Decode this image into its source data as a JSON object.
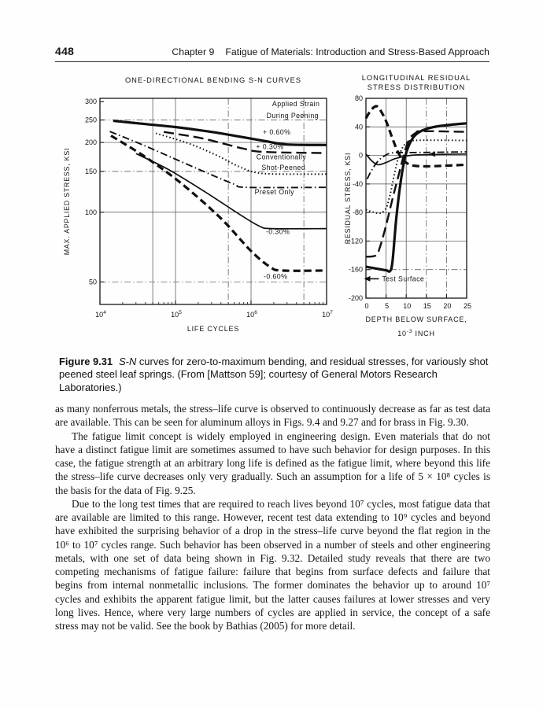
{
  "header": {
    "page_number": "448",
    "chapter_label": "Chapter 9",
    "chapter_title": "Fatigue of Materials: Introduction and Stress-Based Approach"
  },
  "figure_caption": {
    "label": "Figure 9.31",
    "italic_lead": "S-N",
    "text": "curves for zero-to-maximum bending, and residual stresses, for variously shot peened steel leaf springs. (From [Mattson 59]; courtesy of General Motors Research Laboratories.)"
  },
  "paragraphs": [
    "as many nonferrous metals, the stress–life curve is observed to continuously decrease as far as test data are available. This can be seen for aluminum alloys in Figs. 9.4 and 9.27 and for brass in Fig. 9.30.",
    "The fatigue limit concept is widely employed in engineering design. Even materials that do not have a distinct fatigue limit are sometimes assumed to have such behavior for design purposes. In this case, the fatigue strength at an arbitrary long life is defined as the fatigue limit, where beyond this life the stress–life curve decreases only very gradually. Such an assumption for a life of 5 × 10⁸ cycles is the basis for the data of Fig. 9.25.",
    "Due to the long test times that are required to reach lives beyond 10⁷ cycles, most fatigue data that are available are limited to this range. However, recent test data extending to 10⁹ cycles and beyond have exhibited the surprising behavior of a drop in the stress–life curve beyond the flat region in the 10⁶ to 10⁷ cycles range. Such behavior has been observed in a number of steels and other engineering metals, with one set of data being shown in Fig. 9.32. Detailed study reveals that there are two competing mechanisms of fatigue failure: failure that begins from surface defects and failure that begins from internal nonmetallic inclusions. The former dominates the behavior up to around 10⁷ cycles and exhibits the apparent fatigue limit, but the latter causes failures at lower stresses and very long lives. Hence, where very large numbers of cycles are applied in service, the concept of a safe stress may not be valid. See the book by Bathias (2005) for more detail."
  ],
  "chart_data": [
    {
      "type": "line",
      "title": "ONE-DIRECTIONAL BENDING S-N CURVES",
      "xlabel": "LIFE CYCLES",
      "ylabel": "MAX. APPLIED STRESS, KSI",
      "xscale": "log",
      "yscale": "log",
      "xlim": [
        10000,
        10000000
      ],
      "ylim": [
        40,
        310
      ],
      "xticks": [
        {
          "v": 10000,
          "label": "10^4"
        },
        {
          "v": 100000,
          "label": "10^5"
        },
        {
          "v": 1000000,
          "label": "10^6"
        },
        {
          "v": 10000000,
          "label": "10^7"
        }
      ],
      "yticks": [
        {
          "v": 300,
          "label": "300"
        },
        {
          "v": 250,
          "label": "250"
        },
        {
          "v": 200,
          "label": "200"
        },
        {
          "v": 150,
          "label": "150"
        },
        {
          "v": 100,
          "label": "100"
        },
        {
          "v": 50,
          "label": "50"
        }
      ],
      "grid_x": [
        {
          "v": 50000,
          "style": "solid"
        },
        {
          "v": 100000,
          "style": "solid"
        },
        {
          "v": 500000,
          "style": "dashdot"
        },
        {
          "v": 1000000,
          "style": "solid"
        },
        {
          "v": 5000000,
          "style": "dashdot"
        }
      ],
      "grid_y": [
        {
          "v": 250,
          "style": "dashdot"
        },
        {
          "v": 200,
          "style": "solid"
        },
        {
          "v": 150,
          "style": "dashdot"
        },
        {
          "v": 100,
          "style": "solid"
        },
        {
          "v": 50,
          "style": "dashdot"
        }
      ],
      "series": [
        {
          "name": "+ 0.60%",
          "style": "solid-thick",
          "points": [
            [
              15000,
              248
            ],
            [
              40000,
              240
            ],
            [
              100000,
              233
            ],
            [
              300000,
              222
            ],
            [
              700000,
              212
            ],
            [
              1500000,
              203
            ],
            [
              3000000,
              196
            ],
            [
              10000000,
              195
            ]
          ]
        },
        {
          "name": "+ 0.30%",
          "style": "dash-long",
          "points": [
            [
              70000,
              222
            ],
            [
              200000,
              210
            ],
            [
              400000,
              199
            ],
            [
              800000,
              188
            ],
            [
              1500000,
              182
            ],
            [
              10000000,
              180
            ]
          ]
        },
        {
          "name": "Conventionally Shot-Peened",
          "style": "dotted",
          "points": [
            [
              55000,
              219
            ],
            [
              150000,
              198
            ],
            [
              350000,
              176
            ],
            [
              700000,
              157
            ],
            [
              1200000,
              148
            ],
            [
              2500000,
              146
            ],
            [
              10000000,
              146
            ]
          ]
        },
        {
          "name": "Preset Only",
          "style": "dash-dot",
          "points": [
            [
              13500,
              223
            ],
            [
              40000,
              193
            ],
            [
              120000,
              165
            ],
            [
              300000,
              145
            ],
            [
              600000,
              132
            ],
            [
              900000,
              128
            ],
            [
              10000000,
              128
            ]
          ]
        },
        {
          "name": "- 0.30%",
          "style": "solid",
          "points": [
            [
              30000,
              179
            ],
            [
              80000,
              153
            ],
            [
              250000,
              122
            ],
            [
              700000,
              98
            ],
            [
              1300000,
              87
            ],
            [
              1900000,
              85
            ],
            [
              10000000,
              85
            ]
          ]
        },
        {
          "name": "- 0.60%",
          "style": "dash-heavy",
          "points": [
            [
              14000,
              214
            ],
            [
              40000,
              173
            ],
            [
              120000,
              133
            ],
            [
              400000,
              94
            ],
            [
              1000000,
              68
            ],
            [
              1800000,
              58
            ],
            [
              2600000,
              56
            ],
            [
              10000000,
              56
            ]
          ]
        }
      ],
      "annotations": [
        {
          "type": "text",
          "text": "Applied Strain",
          "fx": 0.865,
          "fy": 0.038
        },
        {
          "type": "text",
          "text": "During Peening",
          "fx": 0.85,
          "fy": 0.095
        },
        {
          "type": "text",
          "text": "+ 0.60%",
          "fx": 0.78,
          "fy": 0.175
        },
        {
          "type": "text",
          "text": "+ 0.30%",
          "fx": 0.75,
          "fy": 0.247
        },
        {
          "type": "text",
          "text": "Conventionally",
          "fx": 0.8,
          "fy": 0.296
        },
        {
          "type": "text",
          "text": "Shot-Peened",
          "fx": 0.81,
          "fy": 0.347
        },
        {
          "type": "text",
          "text": "Preset Only",
          "fx": 0.77,
          "fy": 0.466
        },
        {
          "type": "text",
          "text": "-0.30%",
          "fx": 0.785,
          "fy": 0.658
        },
        {
          "type": "text",
          "text": "-0.60%",
          "fx": 0.775,
          "fy": 0.876
        }
      ]
    },
    {
      "type": "line",
      "title": "LONGITUDINAL RESIDUAL",
      "title2": "STRESS DISTRIBUTION",
      "xlabel": "DEPTH BELOW SURFACE,",
      "xlabel2": "10^-3 INCH",
      "ylabel": "RESIDUAL STRESS, KSI",
      "xscale": "linear",
      "yscale": "linear",
      "xlim": [
        0,
        25
      ],
      "ylim": [
        -200,
        80
      ],
      "xticks": [
        {
          "v": 0,
          "label": "0"
        },
        {
          "v": 5,
          "label": "5"
        },
        {
          "v": 10,
          "label": "10"
        },
        {
          "v": 15,
          "label": "15"
        },
        {
          "v": 20,
          "label": "20"
        },
        {
          "v": 25,
          "label": "25"
        }
      ],
      "yticks": [
        {
          "v": 80,
          "label": "80"
        },
        {
          "v": 40,
          "label": "40"
        },
        {
          "v": 0,
          "label": "0"
        },
        {
          "v": -40,
          "label": "-40"
        },
        {
          "v": -80,
          "label": "-80"
        },
        {
          "v": -120,
          "label": "-120"
        },
        {
          "v": -160,
          "label": "-160"
        },
        {
          "v": -200,
          "label": "-200"
        }
      ],
      "grid_x": [
        {
          "v": 5,
          "style": "solid"
        },
        {
          "v": 10,
          "style": "solid"
        },
        {
          "v": 15,
          "style": "dashdot"
        },
        {
          "v": 20,
          "style": "dashdot"
        }
      ],
      "grid_y": [
        {
          "v": 40,
          "style": "solid"
        },
        {
          "v": 0,
          "style": "solid"
        },
        {
          "v": -40,
          "style": "solid"
        },
        {
          "v": -80,
          "style": "solid"
        },
        {
          "v": -120,
          "style": "solid"
        },
        {
          "v": -160,
          "style": "dashdot"
        }
      ],
      "series": [
        {
          "style": "dash-heavy",
          "points": [
            [
              0,
              52
            ],
            [
              1.2,
              63
            ],
            [
              2.5,
              69
            ],
            [
              3.5,
              64
            ],
            [
              5,
              48
            ],
            [
              6.5,
              25
            ],
            [
              8,
              4
            ],
            [
              9.5,
              -8
            ],
            [
              11,
              -13
            ],
            [
              13,
              -15
            ],
            [
              17,
              -15
            ],
            [
              25,
              -13
            ]
          ]
        },
        {
          "style": "dotted",
          "points": [
            [
              0,
              -76
            ],
            [
              1.5,
              -79
            ],
            [
              3.5,
              -81
            ],
            [
              5,
              -74
            ],
            [
              6,
              -55
            ],
            [
              7,
              -28
            ],
            [
              8,
              -4
            ],
            [
              9,
              10
            ],
            [
              10,
              17
            ],
            [
              12,
              21
            ],
            [
              25,
              21
            ]
          ]
        },
        {
          "style": "dash-long",
          "points": [
            [
              0,
              -142
            ],
            [
              2.5,
              -140
            ],
            [
              3.5,
              -128
            ],
            [
              5,
              -98
            ],
            [
              6.5,
              -63
            ],
            [
              8,
              -30
            ],
            [
              9,
              -8
            ],
            [
              10,
              12
            ],
            [
              11,
              25
            ],
            [
              12.5,
              32
            ],
            [
              14,
              34
            ],
            [
              25,
              33
            ]
          ]
        },
        {
          "style": "solid-thick",
          "points": [
            [
              0,
              -156
            ],
            [
              3,
              -159
            ],
            [
              5,
              -161
            ],
            [
              6,
              -162
            ],
            [
              6.6,
              -148
            ],
            [
              7.5,
              -90
            ],
            [
              8.5,
              -42
            ],
            [
              9.5,
              -8
            ],
            [
              10.5,
              12
            ],
            [
              12,
              27
            ],
            [
              14,
              35
            ],
            [
              17,
              40
            ],
            [
              21,
              43
            ],
            [
              25,
              45
            ]
          ]
        },
        {
          "style": "solid",
          "points": [
            [
              0,
              2
            ],
            [
              1.5,
              -8
            ],
            [
              3,
              -13
            ],
            [
              5,
              -10
            ],
            [
              7,
              -5
            ],
            [
              9,
              -2
            ],
            [
              11,
              0
            ],
            [
              14,
              1
            ],
            [
              25,
              2
            ]
          ]
        },
        {
          "style": "dash-dot",
          "points": [
            [
              0.3,
              -33
            ],
            [
              1.5,
              -20
            ],
            [
              3,
              -8
            ],
            [
              4.5,
              -1
            ],
            [
              6,
              3
            ],
            [
              8,
              4
            ],
            [
              12,
              4
            ],
            [
              25,
              5
            ]
          ]
        }
      ],
      "annotations": [
        {
          "type": "arrow-label",
          "text": "Test Surface",
          "fx": 0.16,
          "fy": 0.915
        },
        {
          "type": "arrowhead",
          "fx": 0.68,
          "fy": 0.279
        }
      ]
    }
  ]
}
